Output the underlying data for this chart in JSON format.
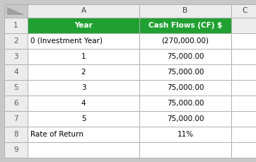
{
  "col_header_row": [
    "Year",
    "Cash Flows (CF) $"
  ],
  "rows": [
    [
      "0 (Investment Year)",
      "(270,000.00)"
    ],
    [
      "1",
      "75,000.00"
    ],
    [
      "2",
      "75,000.00"
    ],
    [
      "3",
      "75,000.00"
    ],
    [
      "4",
      "75,000.00"
    ],
    [
      "5",
      "75,000.00"
    ],
    [
      "Rate of Return",
      "11%"
    ]
  ],
  "header_bg": "#21A032",
  "header_text": "#FFFFFF",
  "cell_bg": "#FFFFFF",
  "cell_text": "#000000",
  "grid_color": "#B0B0B0",
  "outer_bg": "#C8C8C8",
  "col_header_bg": "#ECECEC",
  "font_size": 7.5,
  "corner_triangle_color": "#A0A0A0",
  "row_num_color": "#595959"
}
